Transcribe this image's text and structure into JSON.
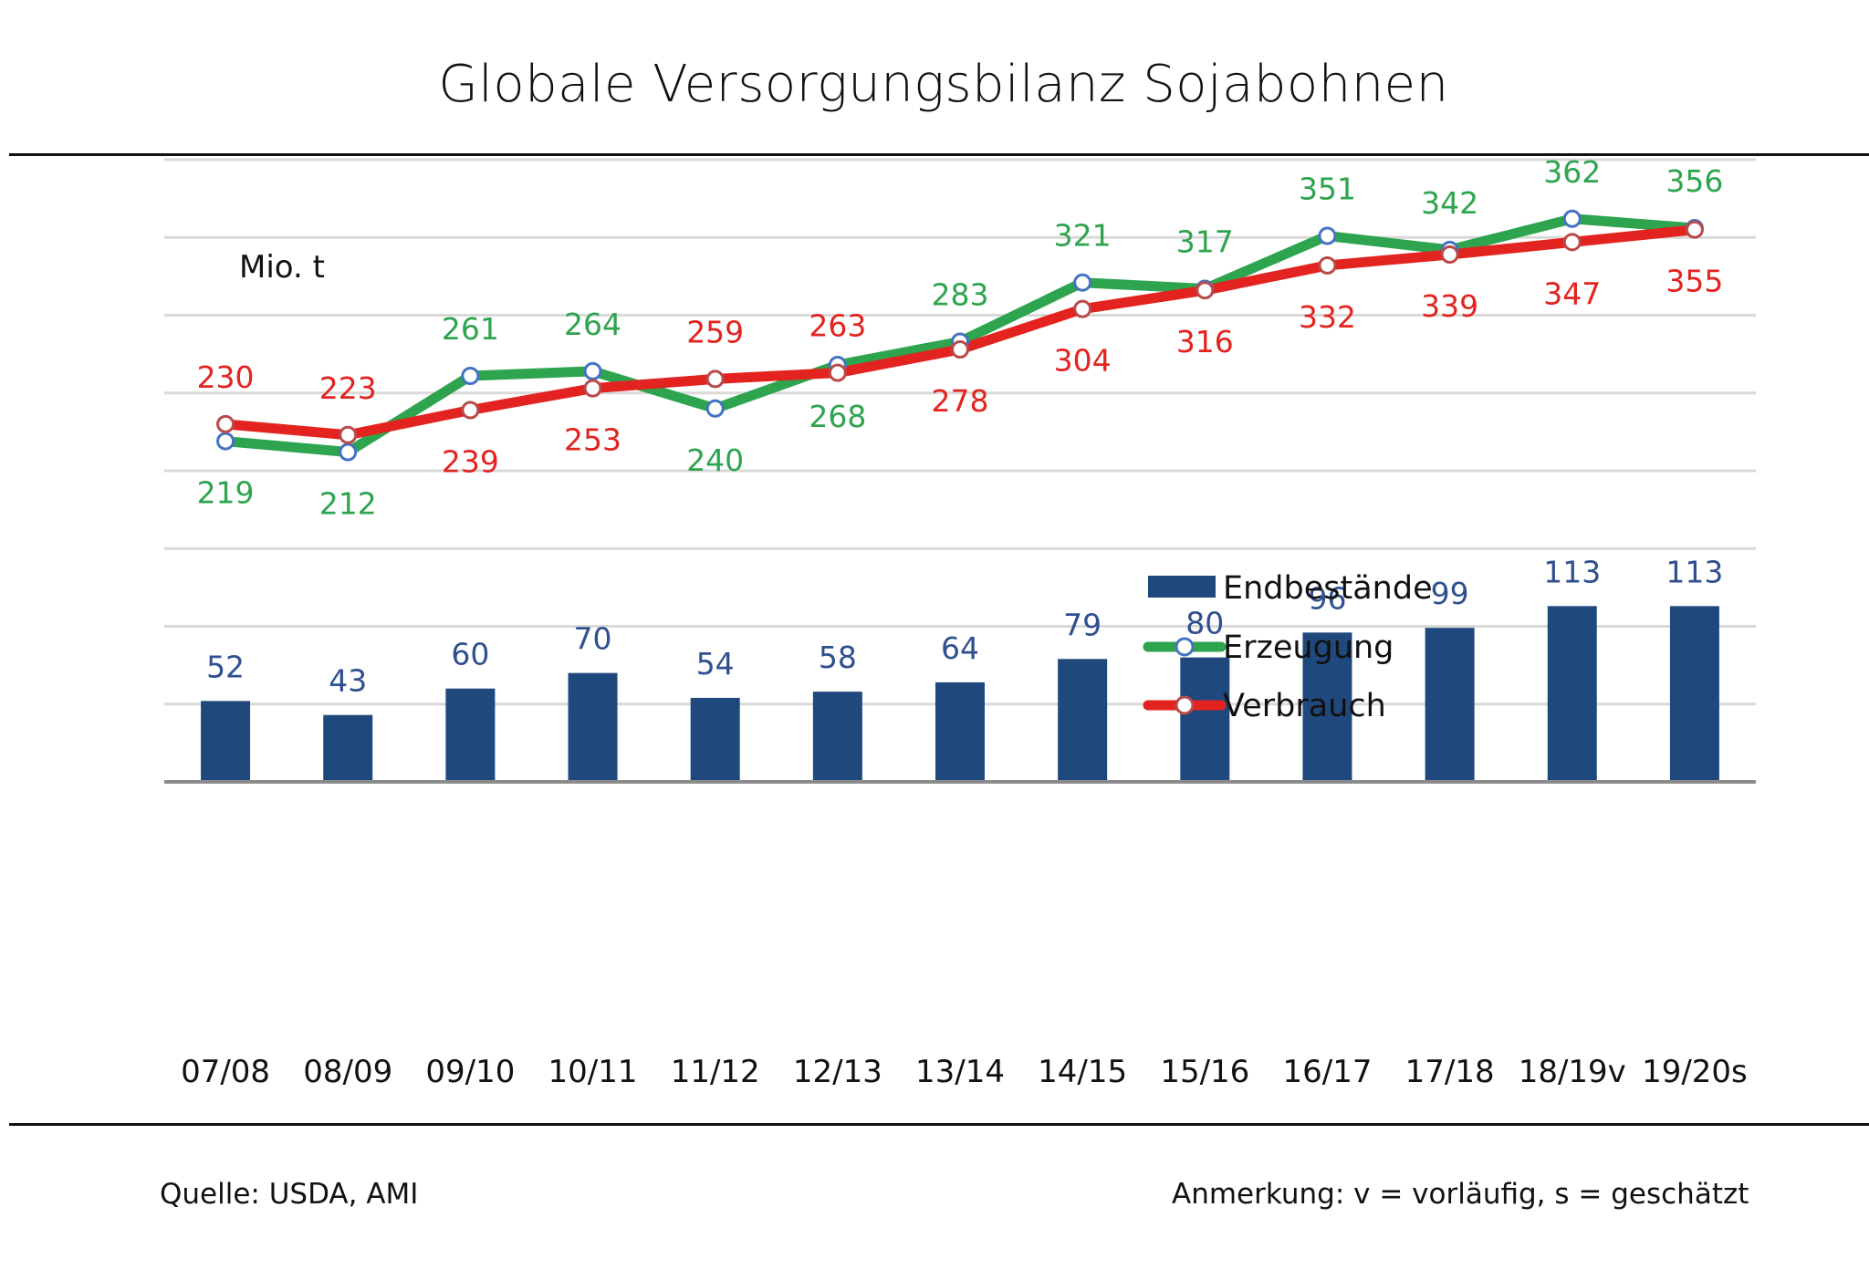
{
  "chart_data": {
    "type": "bar+line",
    "title": "Globale Versorgungsbilanz Sojabohnen",
    "ylabel": "Mio. t",
    "xlabel": "",
    "ylim": [
      0,
      400
    ],
    "ytick_step": 50,
    "grid": true,
    "legend_position": "right-middle",
    "categories": [
      "07/08",
      "08/09",
      "09/10",
      "10/11",
      "11/12",
      "12/13",
      "13/14",
      "14/15",
      "15/16",
      "16/17",
      "17/18",
      "18/19v",
      "19/20s"
    ],
    "series": [
      {
        "name": "Endbestände",
        "type": "bar",
        "color": "#1f497d",
        "label_color": "#2f4f8f",
        "values": [
          52,
          43,
          60,
          70,
          54,
          58,
          64,
          79,
          80,
          96,
          99,
          113,
          113
        ]
      },
      {
        "name": "Erzeugung",
        "type": "line",
        "color": "#2ea44f",
        "marker_edge": "#4472c4",
        "label_color": "#2ea44f",
        "values": [
          219,
          212,
          261,
          264,
          240,
          268,
          283,
          321,
          317,
          351,
          342,
          362,
          356
        ],
        "label_positions": [
          "below",
          "below",
          "above",
          "above",
          "below",
          "below",
          "above",
          "above",
          "above",
          "above",
          "above",
          "above",
          "above"
        ]
      },
      {
        "name": "Verbrauch",
        "type": "line",
        "color": "#e3231f",
        "marker_edge": "#b84a4a",
        "label_color": "#e3231f",
        "values": [
          230,
          223,
          239,
          253,
          259,
          263,
          278,
          304,
          316,
          332,
          339,
          347,
          355
        ],
        "label_positions": [
          "above",
          "above",
          "below",
          "below",
          "above",
          "above",
          "below",
          "below",
          "below",
          "below",
          "below",
          "below",
          "below"
        ]
      }
    ]
  },
  "footer": {
    "source": "Quelle: USDA, AMI",
    "note": "Anmerkung: v = vorläufig, s = geschätzt"
  }
}
